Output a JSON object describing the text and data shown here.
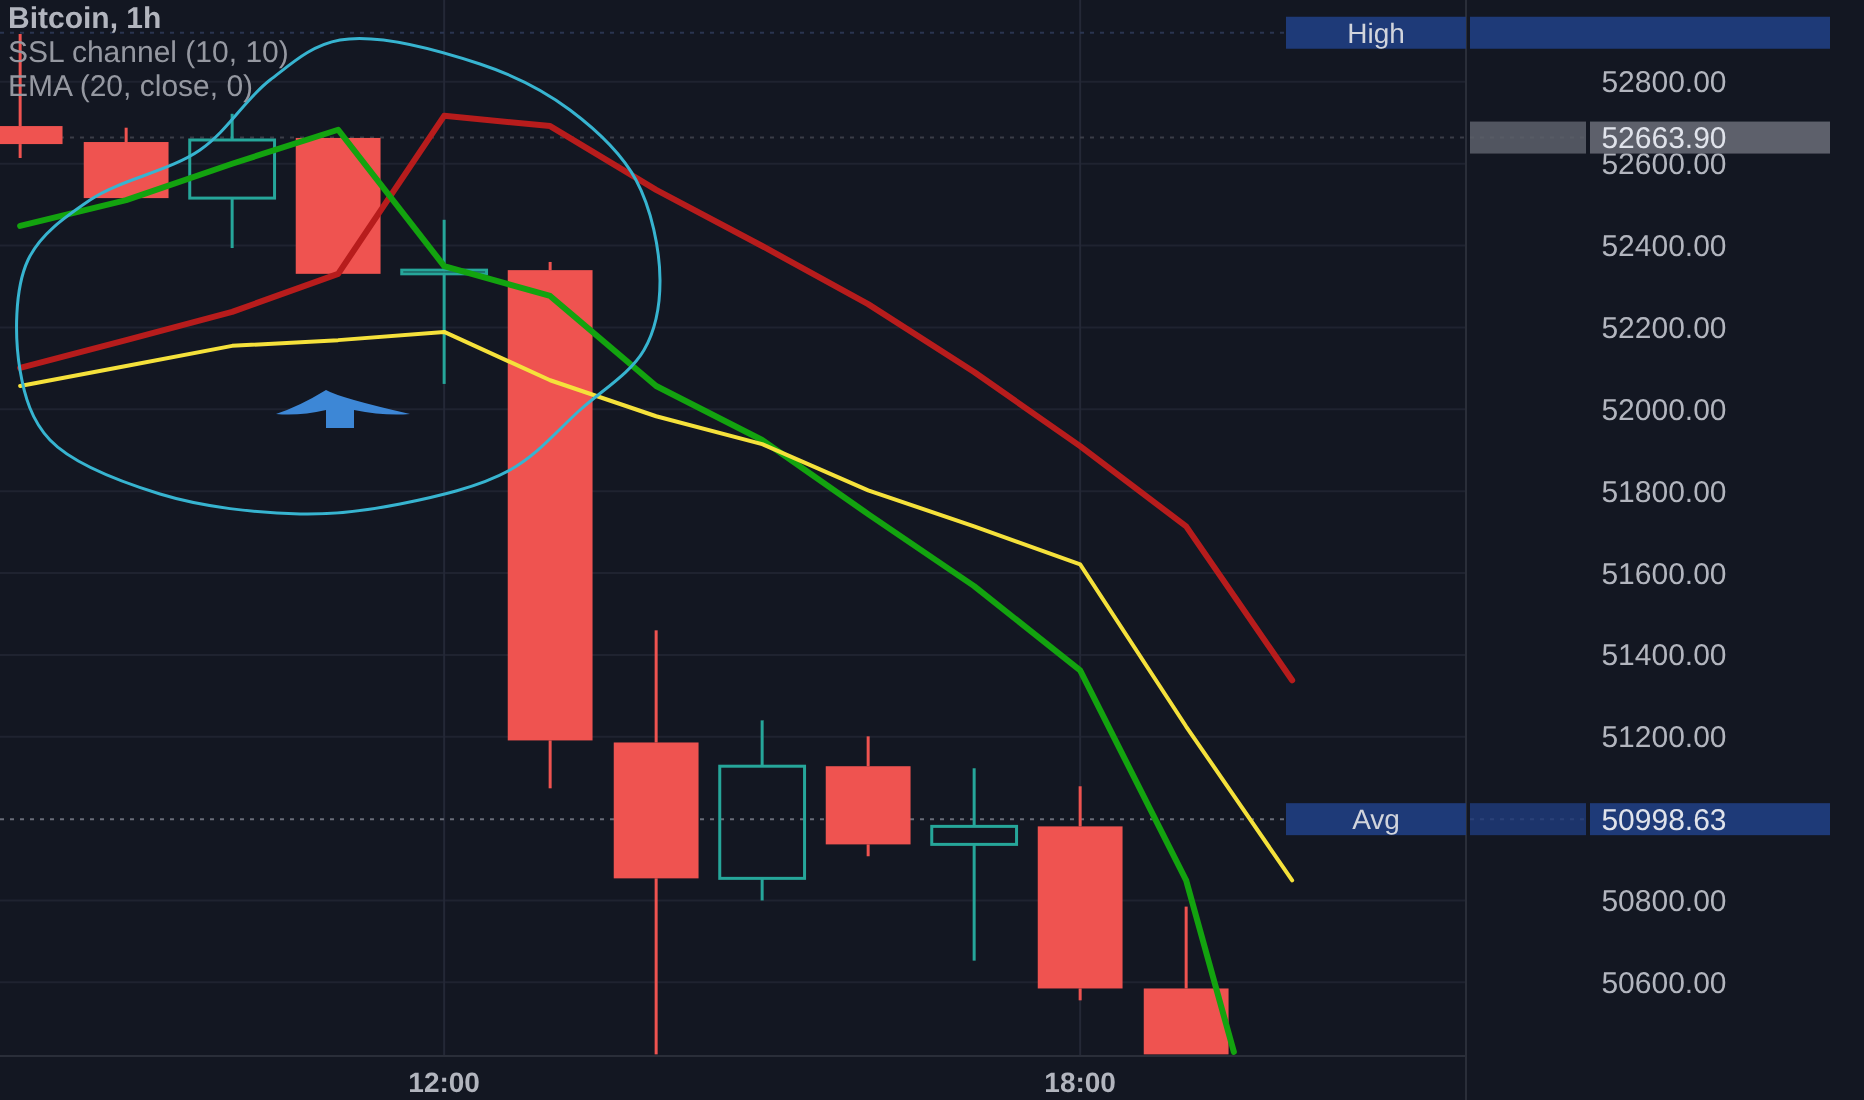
{
  "chart_data": {
    "type": "candlestick",
    "title": "Bitcoin, 1h",
    "annotations": [
      "SSL channel (10, 10)",
      "EMA (20, close, 0)",
      "Avg",
      "High"
    ],
    "x": [
      8,
      9,
      10,
      11,
      12,
      13,
      14,
      15,
      16,
      17,
      18,
      19
    ],
    "ohlc": [
      [
        52692,
        52917,
        52614,
        52648
      ],
      [
        52653,
        52688,
        52516,
        52516
      ],
      [
        52516,
        52722,
        52394,
        52658
      ],
      [
        52663,
        52663,
        52331,
        52331
      ],
      [
        52331,
        52463,
        52062,
        52340
      ],
      [
        52340,
        52360,
        51074,
        51191
      ],
      [
        51186,
        51460,
        50424,
        50854
      ],
      [
        50854,
        51240,
        50800,
        51128
      ],
      [
        51128,
        51201,
        50908,
        50937
      ],
      [
        50937,
        51123,
        50653,
        50981
      ],
      [
        50981,
        51079,
        50556,
        50585
      ],
      [
        50585,
        50785,
        50424,
        50424
      ]
    ],
    "colors": [
      "#ef5350",
      "#ef5350",
      "#26a69a",
      "#ef5350",
      "#26a69a",
      "#ef5350",
      "#ef5350",
      "#26a69a",
      "#ef5350",
      "#26a69a",
      "#ef5350",
      "#ef5350"
    ],
    "series": [
      {
        "type": "line",
        "color": "#b71c1c",
        "x": [
          8,
          9,
          10,
          11,
          12,
          13,
          14,
          15,
          16,
          17,
          18,
          19,
          20
        ],
        "values": [
          52101,
          52169,
          52238,
          52331,
          52717,
          52692,
          52536,
          52399,
          52257,
          52091,
          51910,
          51714,
          51338
        ]
      },
      {
        "type": "line",
        "color": "#13a30f",
        "x": [
          8,
          9,
          10,
          11,
          12,
          13,
          14,
          15,
          16,
          17,
          18,
          19,
          19.45
        ],
        "values": [
          52448,
          52511,
          52600,
          52683,
          52350,
          52277,
          52057,
          51925,
          51744,
          51568,
          51362,
          50849,
          50430
        ]
      },
      {
        "type": "line",
        "color": "#f5e13b",
        "x": [
          8,
          9,
          10,
          11,
          12,
          13,
          14,
          15,
          16,
          17,
          18,
          19,
          20
        ],
        "values": [
          52057,
          52106,
          52155,
          52169,
          52189,
          52071,
          51983,
          51915,
          51802,
          51714,
          51621,
          51225,
          50849
        ]
      }
    ],
    "xlim": [
      7.81,
      21.64
    ],
    "ylim": [
      50420,
      53000
    ],
    "xticks": [
      {
        "value": 12,
        "label": "12:00"
      },
      {
        "value": 18,
        "label": "18:00"
      }
    ],
    "yticks": [
      {
        "value": 50600,
        "label": "50600.00"
      },
      {
        "value": 50800,
        "label": "50800.00"
      },
      {
        "value": 51200,
        "label": "51200.00"
      },
      {
        "value": 51400,
        "label": "51400.00"
      },
      {
        "value": 51600,
        "label": "51600.00"
      },
      {
        "value": 51800,
        "label": "51800.00"
      },
      {
        "value": 52000,
        "label": "52000.00"
      },
      {
        "value": 52200,
        "label": "52200.00"
      },
      {
        "value": 52400,
        "label": "52400.00"
      },
      {
        "value": 52600,
        "label": "52600.00"
      },
      {
        "value": 52800,
        "label": "52800.00"
      }
    ],
    "ref_lines": [
      {
        "axis": "y",
        "value": 50998.63,
        "label": "50998.63",
        "color": "#6a6e7a",
        "line_style": "dotted"
      },
      {
        "axis": "y",
        "value": 52920,
        "label": null,
        "color": "#2a3550",
        "line_style": "dotted"
      },
      {
        "axis": "y",
        "value": 52663.9,
        "label": "52663.90",
        "color": "#3a3d47",
        "line_style": "dotted"
      }
    ],
    "grid": true
  }
}
